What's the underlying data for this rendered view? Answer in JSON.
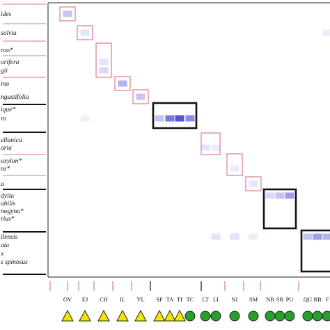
{
  "chart_data": {
    "type": "heatmap",
    "row_labels": [
      "ides",
      "salvia",
      "roo*",
      "orifera",
      "gii",
      "ina",
      "ngustifolia",
      "ique*",
      "ro",
      "ellanica",
      "aria",
      "oxylon*",
      "ns*",
      "a",
      "dylla",
      "abilis",
      "nogyna*",
      "rius*",
      "ilensis",
      "ata",
      "x",
      "s spinosus"
    ],
    "column_labels": [
      "OV",
      "EJ",
      "CH",
      "IL",
      "YL",
      "SF",
      "TA",
      "TI",
      "TC",
      "LT",
      "LI",
      "NI",
      "SM",
      "NB",
      "SR",
      "PU",
      "QU",
      "RB",
      "F"
    ],
    "marker_types": [
      "triangle",
      "triangle",
      "triangle",
      "triangle",
      "triangle",
      "triangle",
      "triangle",
      "triangle",
      "circle",
      "circle",
      "circle",
      "circle",
      "circle",
      "circle",
      "circle",
      "circle",
      "circle",
      "circle",
      "circle"
    ],
    "colors": {
      "cell": "#4040d8",
      "pink_outline": "#e07a8a",
      "block_outline": "#111111",
      "triangle": "#f2e600",
      "circle": "#27a02c"
    },
    "cells": [
      {
        "row": "ides",
        "col": "OV",
        "value": 0.3
      },
      {
        "row": "salvia",
        "col": "EJ",
        "value": 0.15
      },
      {
        "row": "orifera",
        "col": "CH",
        "value": 0.15
      },
      {
        "row": "gii",
        "col": "CH",
        "value": 0.2
      },
      {
        "row": "ina",
        "col": "IL",
        "value": 0.4
      },
      {
        "row": "ngustifolia",
        "col": "YL",
        "value": 0.3
      },
      {
        "row": "ro",
        "col": "SF",
        "value": 0.3
      },
      {
        "row": "ro",
        "col": "TA",
        "value": 0.7
      },
      {
        "row": "ro",
        "col": "TI",
        "value": 0.9
      },
      {
        "row": "ro",
        "col": "TC",
        "value": 0.6
      },
      {
        "row": "aria",
        "col": "LT",
        "value": 0.15
      },
      {
        "row": "aria",
        "col": "LI",
        "value": 0.1
      },
      {
        "row": "ns*",
        "col": "NI",
        "value": 0.1
      },
      {
        "row": "a",
        "col": "SM",
        "value": 0.15
      },
      {
        "row": "dylla",
        "col": "NB",
        "value": 0.2
      },
      {
        "row": "dylla",
        "col": "SR",
        "value": 0.3
      },
      {
        "row": "dylla",
        "col": "PU",
        "value": 0.5
      },
      {
        "row": "ilensis",
        "col": "QU",
        "value": 0.3
      },
      {
        "row": "ilensis",
        "col": "RB",
        "value": 0.5
      },
      {
        "row": "ilensis",
        "col": "F",
        "value": 0.4
      },
      {
        "row": "salvia",
        "col": "F",
        "value": 0.1
      },
      {
        "row": "ro",
        "col": "EJ",
        "value": 0.08
      },
      {
        "row": "ilensis",
        "col": "NI",
        "value": 0.15
      },
      {
        "row": "ilensis",
        "col": "SM",
        "value": 0.1
      },
      {
        "row": "ilensis",
        "col": "LI",
        "value": 0.15
      }
    ],
    "pink_diagonal_boxes": [
      {
        "rows": [
          "ides"
        ],
        "cols": [
          "OV"
        ]
      },
      {
        "rows": [
          "salvia"
        ],
        "cols": [
          "EJ"
        ]
      },
      {
        "rows": [
          "roo*",
          "orifera",
          "gii"
        ],
        "cols": [
          "CH"
        ]
      },
      {
        "rows": [
          "ina"
        ],
        "cols": [
          "IL"
        ]
      },
      {
        "rows": [
          "ngustifolia"
        ],
        "cols": [
          "YL"
        ]
      },
      {
        "rows": [
          "ellanica",
          "aria"
        ],
        "cols": [
          "LT",
          "LI"
        ]
      },
      {
        "rows": [
          "oxylon*",
          "ns*"
        ],
        "cols": [
          "NI"
        ]
      },
      {
        "rows": [
          "a"
        ],
        "cols": [
          "SM"
        ]
      }
    ],
    "black_blocks": [
      {
        "rows": [
          "ique*",
          "ro"
        ],
        "cols": [
          "SF",
          "TA",
          "TI",
          "TC"
        ]
      },
      {
        "rows": [
          "dylla",
          "abilis",
          "nogyna*",
          "rius*"
        ],
        "cols": [
          "NB",
          "SR",
          "PU"
        ]
      },
      {
        "rows": [
          "ilensis",
          "ata",
          "x",
          "s spinosus"
        ],
        "cols": [
          "QU",
          "RB",
          "F"
        ]
      }
    ]
  }
}
